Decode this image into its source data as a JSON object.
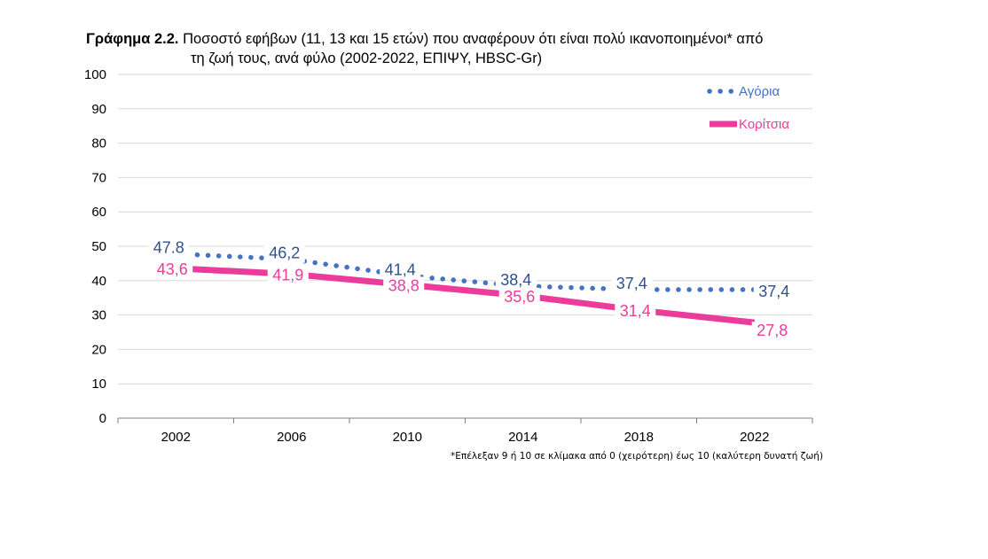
{
  "title": {
    "label": "Γράφημα 2.2.",
    "line1": "Ποσοστό εφήβων (11, 13 και 15 ετών) που αναφέρουν ότι είναι πολύ ικανοποιημένοι* από",
    "line2": "τη ζωή τους, ανά φύλο (2002-2022, ΕΠΙΨΥ, HBSC-Gr)"
  },
  "footnote": "*Επέλεξαν 9  ή 10 σε κλίμακα από 0 (χειρότερη) έως 10 (καλύτερη δυνατή ζωή)",
  "colors": {
    "boys": "#4472C4",
    "girls": "#EC3C9B",
    "boys_label": "#2F4F8F",
    "grid": "#D9D9D9",
    "axis": "#808080"
  },
  "chart_data": {
    "type": "line",
    "categories": [
      "2002",
      "2006",
      "2010",
      "2014",
      "2018",
      "2022"
    ],
    "ylim": [
      0,
      100
    ],
    "yticks": [
      0,
      10,
      20,
      30,
      40,
      50,
      60,
      70,
      80,
      90,
      100
    ],
    "legend_position": "top-right",
    "grid": true,
    "series": [
      {
        "name": "Αγόρια",
        "values": [
          47.8,
          46.2,
          41.4,
          38.4,
          37.4,
          37.4
        ],
        "labels": [
          "47.8",
          "46,2",
          "41,4",
          "38,4",
          "37,4",
          "37,4"
        ],
        "style": "dotted"
      },
      {
        "name": "Κορίτσια",
        "values": [
          43.6,
          41.9,
          38.8,
          35.6,
          31.4,
          27.8
        ],
        "labels": [
          "43,6",
          "41,9",
          "38,8",
          "35,6",
          "31,4",
          "27,8"
        ],
        "style": "solid"
      }
    ]
  }
}
